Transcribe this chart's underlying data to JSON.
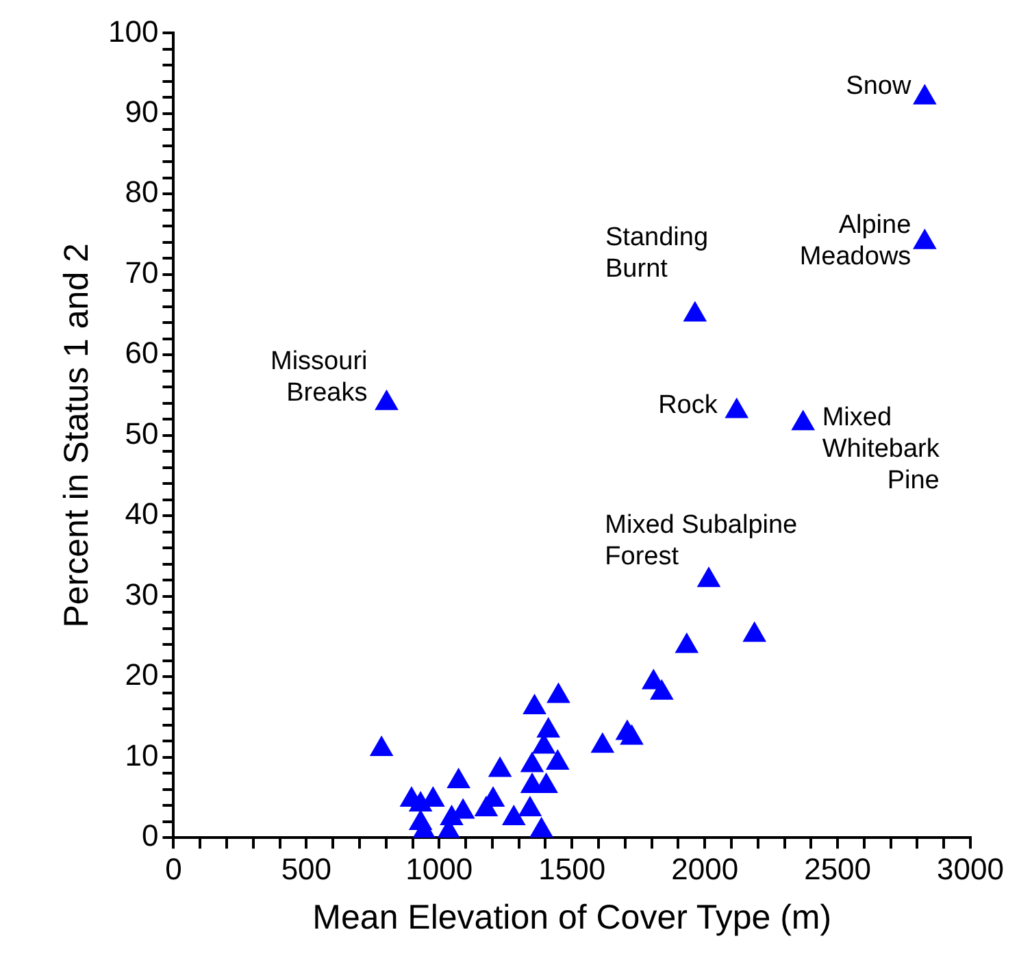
{
  "chart_data": {
    "type": "scatter",
    "xlabel": "Mean Elevation of Cover Type (m)",
    "ylabel": "Percent in Status 1 and 2",
    "marker": "triangle",
    "grid": false,
    "xlim": [
      0,
      3000
    ],
    "ylim": [
      0,
      100
    ],
    "xticks": [
      0,
      {
        "value": 100,
        "label": null
      },
      {
        "value": 200,
        "label": null
      },
      {
        "value": 300,
        "label": null
      },
      {
        "value": 400,
        "label": null
      },
      500,
      {
        "value": 600,
        "label": null
      },
      {
        "value": 700,
        "label": null
      },
      {
        "value": 800,
        "label": null
      },
      {
        "value": 900,
        "label": null
      },
      1000,
      {
        "value": 1100,
        "label": null
      },
      {
        "value": 1200,
        "label": null
      },
      {
        "value": 1300,
        "label": null
      },
      {
        "value": 1400,
        "label": null
      },
      1500,
      {
        "value": 1600,
        "label": null
      },
      {
        "value": 1700,
        "label": null
      },
      {
        "value": 1800,
        "label": null
      },
      {
        "value": 1900,
        "label": null
      },
      2000,
      {
        "value": 2100,
        "label": null
      },
      {
        "value": 2200,
        "label": null
      },
      {
        "value": 2300,
        "label": null
      },
      {
        "value": 2400,
        "label": null
      },
      2500,
      {
        "value": 2600,
        "label": null
      },
      {
        "value": 2700,
        "label": null
      },
      {
        "value": 2800,
        "label": null
      },
      {
        "value": 2900,
        "label": null
      },
      3000
    ],
    "yticks": [
      0,
      {
        "value": 2,
        "label": null
      },
      {
        "value": 4,
        "label": null
      },
      {
        "value": 6,
        "label": null
      },
      {
        "value": 8,
        "label": null
      },
      10,
      {
        "value": 12,
        "label": null
      },
      {
        "value": 14,
        "label": null
      },
      {
        "value": 16,
        "label": null
      },
      {
        "value": 18,
        "label": null
      },
      20,
      {
        "value": 22,
        "label": null
      },
      {
        "value": 24,
        "label": null
      },
      {
        "value": 26,
        "label": null
      },
      {
        "value": 28,
        "label": null
      },
      30,
      {
        "value": 32,
        "label": null
      },
      {
        "value": 34,
        "label": null
      },
      {
        "value": 36,
        "label": null
      },
      {
        "value": 38,
        "label": null
      },
      40,
      {
        "value": 42,
        "label": null
      },
      {
        "value": 44,
        "label": null
      },
      {
        "value": 46,
        "label": null
      },
      {
        "value": 48,
        "label": null
      },
      50,
      {
        "value": 52,
        "label": null
      },
      {
        "value": 54,
        "label": null
      },
      {
        "value": 56,
        "label": null
      },
      {
        "value": 58,
        "label": null
      },
      60,
      {
        "value": 62,
        "label": null
      },
      {
        "value": 64,
        "label": null
      },
      {
        "value": 66,
        "label": null
      },
      {
        "value": 68,
        "label": null
      },
      70,
      {
        "value": 72,
        "label": null
      },
      {
        "value": 74,
        "label": null
      },
      {
        "value": 76,
        "label": null
      },
      {
        "value": 78,
        "label": null
      },
      80,
      {
        "value": 82,
        "label": null
      },
      {
        "value": 84,
        "label": null
      },
      {
        "value": 86,
        "label": null
      },
      {
        "value": 88,
        "label": null
      },
      90,
      {
        "value": 92,
        "label": null
      },
      {
        "value": 94,
        "label": null
      },
      {
        "value": 96,
        "label": null
      },
      {
        "value": 98,
        "label": null
      },
      100
    ],
    "series": [
      {
        "color": "#0000ff",
        "x": [
          2828,
          2828,
          1963,
          2120,
          2370,
          2015,
          802,
          1932,
          2187,
          1807,
          1838,
          1708,
          1725,
          1615,
          783,
          896,
          930,
          977,
          930,
          943,
          1030,
          1073,
          1090,
          1047,
          1036,
          1177,
          1203,
          1229,
          1281,
          1342,
          1385,
          1359,
          1449,
          1411,
          1394,
          1350,
          1446,
          1350,
          1403
        ],
        "values": [
          92,
          74,
          65,
          53,
          51.5,
          32,
          54,
          23.8,
          25.2,
          19.3,
          18,
          13,
          12.4,
          11.4,
          11,
          4.7,
          4.1,
          4.7,
          1.8,
          0.7,
          null,
          7,
          3.2,
          2.4,
          0.7,
          3.5,
          4.7,
          8.4,
          2.4,
          3.5,
          0.9,
          16.2,
          17.6,
          13.3,
          11.3,
          9,
          9.3,
          6.4,
          6.4
        ]
      }
    ],
    "annotations": [
      {
        "text": "Snow",
        "x": 2828,
        "y": 92
      },
      {
        "text": "Alpine Meadows",
        "x": 2828,
        "y": 74
      },
      {
        "text": "Standing Burnt",
        "x": 1963,
        "y": 65
      },
      {
        "text": "Rock",
        "x": 2120,
        "y": 53
      },
      {
        "text": "Mixed Whitebark Pine",
        "x": 2370,
        "y": 51.5
      },
      {
        "text": "Mixed Subalpine Forest",
        "x": 2015,
        "y": 32
      },
      {
        "text": "Missouri Breaks",
        "x": 802,
        "y": 54
      }
    ]
  }
}
